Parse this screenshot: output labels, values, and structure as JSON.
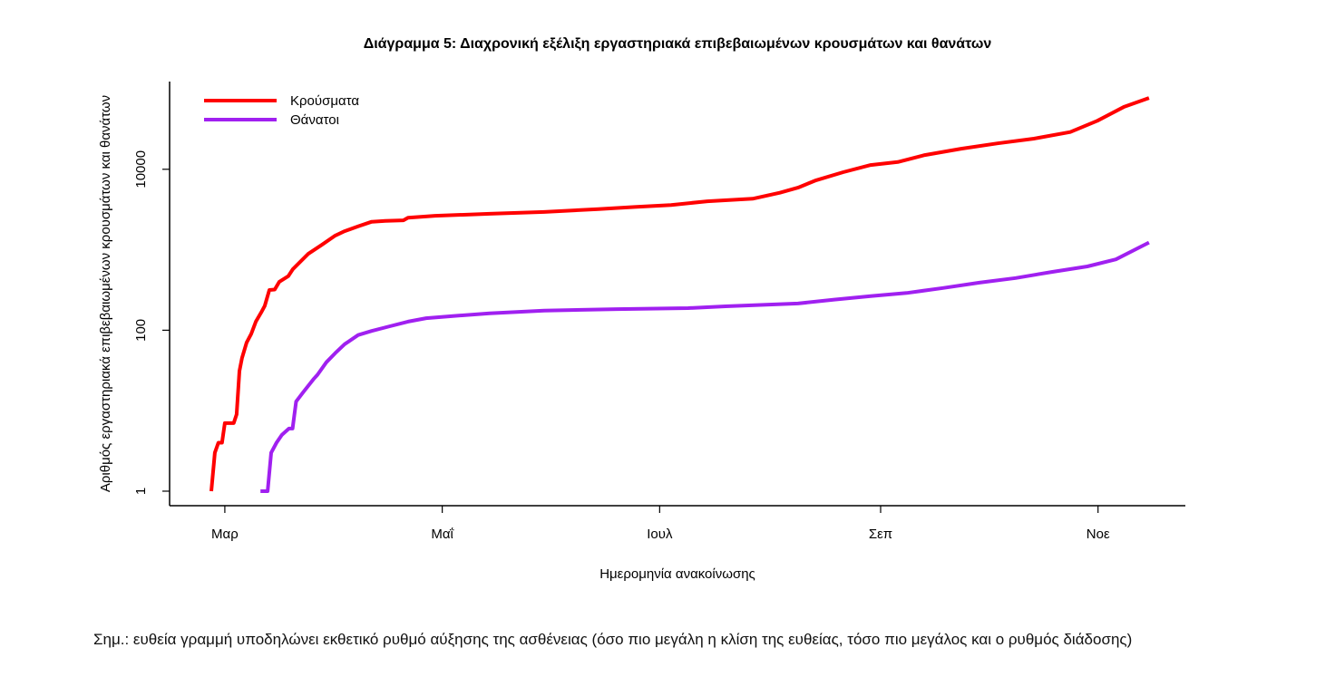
{
  "chart_data": {
    "type": "line",
    "title": "Διάγραμμα 5: Διαχρονική εξέλιξη εργαστηριακά επιβεβαιωμένων κρουσμάτων και θανάτων",
    "xlabel": "Ημερομηνία ανακοίνωσης",
    "ylabel": "Αριθμός εργαστηριακά επιβεβαιωμένων κρουσμάτων και θανάτων",
    "x_units": "days since 1 March",
    "xlim": [
      -15.5,
      269.5
    ],
    "x_ticks": [
      {
        "value": 0,
        "label": "Μαρ"
      },
      {
        "value": 61,
        "label": "Μαΐ"
      },
      {
        "value": 122,
        "label": "Ιουλ"
      },
      {
        "value": 184,
        "label": "Σεπ"
      },
      {
        "value": 245,
        "label": "Νοε"
      }
    ],
    "y_scale": "log",
    "ylim": [
      0.66,
      123000
    ],
    "y_ticks": [
      {
        "value": 1,
        "label": "1"
      },
      {
        "value": 100,
        "label": "100"
      },
      {
        "value": 10000,
        "label": "10000"
      }
    ],
    "grid": false,
    "legend_position": "top-left",
    "series": [
      {
        "name": "Κρούσματα",
        "color": "#ff0000",
        "x": [
          -3.8,
          -2.8,
          -1.8,
          -0.8,
          0,
          2.5,
          3.3,
          4.1,
          4.8,
          6.1,
          7.4,
          8.7,
          10.2,
          11.2,
          12.5,
          14,
          15.3,
          17.8,
          19.1,
          20.9,
          23.4,
          27.2,
          31,
          33.6,
          37.4,
          41.2,
          45,
          50.1,
          51.4,
          59,
          74.3,
          89.6,
          104.8,
          115,
          125.2,
          135.4,
          148.1,
          155.7,
          160.8,
          165.9,
          173.5,
          181.2,
          188.8,
          196.4,
          206.6,
          216.8,
          227,
          237.2,
          244.8,
          252.4,
          259.3
        ],
        "y": [
          1,
          3,
          4,
          4,
          7,
          7,
          9,
          31,
          45,
          70,
          90,
          128,
          166,
          200,
          316,
          320,
          400,
          470,
          575,
          690,
          890,
          1150,
          1500,
          1700,
          1950,
          2230,
          2280,
          2320,
          2500,
          2640,
          2800,
          2950,
          3200,
          3400,
          3600,
          4000,
          4300,
          5100,
          5900,
          7300,
          9200,
          11300,
          12300,
          15000,
          18000,
          21000,
          24000,
          29000,
          40000,
          60000,
          77000
        ]
      },
      {
        "name": "Θάνατοι",
        "color": "#a020f0",
        "x": [
          10,
          12,
          13,
          14.5,
          16,
          18,
          19,
          20,
          22,
          25,
          26,
          28.5,
          31,
          33.6,
          37.4,
          41.2,
          46.3,
          51.4,
          56.5,
          64,
          74.3,
          89.6,
          110,
          130,
          140.5,
          160.8,
          171,
          181.2,
          191.3,
          201.5,
          211.7,
          221.9,
          232,
          242,
          250,
          259.3
        ],
        "y": [
          1,
          1,
          3,
          4,
          5,
          6,
          6,
          13,
          17,
          25,
          28,
          40,
          52,
          67,
          87,
          98,
          112,
          128,
          141,
          150,
          162,
          175,
          183,
          188,
          198,
          215,
          240,
          265,
          290,
          335,
          390,
          445,
          530,
          620,
          760,
          1230
        ]
      }
    ]
  },
  "note": "Σημ.: ευθεία γραμμή υποδηλώνει εκθετικό ρυθμό αύξησης της ασθένειας (όσο πιο μεγάλη η κλίση της ευθείας, τόσο πιο μεγάλος και ο ρυθμός διάδοσης)"
}
